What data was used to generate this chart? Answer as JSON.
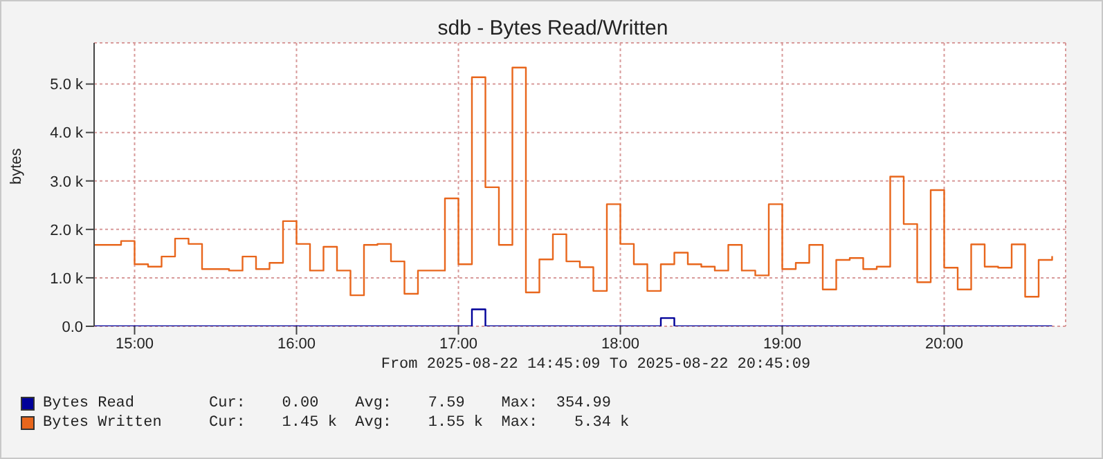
{
  "chart_data": {
    "type": "step",
    "title": "sdb - Bytes Read/Written",
    "ylabel": "bytes",
    "x": [
      "2025-08-22T14:45",
      "2025-08-22T14:50",
      "2025-08-22T14:55",
      "2025-08-22T15:00",
      "2025-08-22T15:05",
      "2025-08-22T15:10",
      "2025-08-22T15:15",
      "2025-08-22T15:20",
      "2025-08-22T15:25",
      "2025-08-22T15:30",
      "2025-08-22T15:35",
      "2025-08-22T15:40",
      "2025-08-22T15:45",
      "2025-08-22T15:50",
      "2025-08-22T15:55",
      "2025-08-22T16:00",
      "2025-08-22T16:05",
      "2025-08-22T16:10",
      "2025-08-22T16:15",
      "2025-08-22T16:20",
      "2025-08-22T16:25",
      "2025-08-22T16:30",
      "2025-08-22T16:35",
      "2025-08-22T16:40",
      "2025-08-22T16:45",
      "2025-08-22T16:50",
      "2025-08-22T16:55",
      "2025-08-22T17:00",
      "2025-08-22T17:05",
      "2025-08-22T17:10",
      "2025-08-22T17:15",
      "2025-08-22T17:20",
      "2025-08-22T17:25",
      "2025-08-22T17:30",
      "2025-08-22T17:35",
      "2025-08-22T17:40",
      "2025-08-22T17:45",
      "2025-08-22T17:50",
      "2025-08-22T17:55",
      "2025-08-22T18:00",
      "2025-08-22T18:05",
      "2025-08-22T18:10",
      "2025-08-22T18:15",
      "2025-08-22T18:20",
      "2025-08-22T18:25",
      "2025-08-22T18:30",
      "2025-08-22T18:35",
      "2025-08-22T18:40",
      "2025-08-22T18:45",
      "2025-08-22T18:50",
      "2025-08-22T18:55",
      "2025-08-22T19:00",
      "2025-08-22T19:05",
      "2025-08-22T19:10",
      "2025-08-22T19:15",
      "2025-08-22T19:20",
      "2025-08-22T19:25",
      "2025-08-22T19:30",
      "2025-08-22T19:35",
      "2025-08-22T19:40",
      "2025-08-22T19:45",
      "2025-08-22T19:50",
      "2025-08-22T19:55",
      "2025-08-22T20:00",
      "2025-08-22T20:05",
      "2025-08-22T20:10",
      "2025-08-22T20:15",
      "2025-08-22T20:20",
      "2025-08-22T20:25",
      "2025-08-22T20:30",
      "2025-08-22T20:35",
      "2025-08-22T20:40"
    ],
    "series": [
      {
        "name": "Bytes Read",
        "color": "#000099",
        "values": [
          0,
          0,
          0,
          0,
          0,
          0,
          0,
          0,
          0,
          0,
          0,
          0,
          0,
          0,
          0,
          0,
          0,
          0,
          0,
          0,
          0,
          0,
          0,
          0,
          0,
          0,
          0,
          0,
          350,
          0,
          0,
          0,
          0,
          0,
          0,
          0,
          0,
          0,
          0,
          0,
          0,
          0,
          170,
          0,
          0,
          0,
          0,
          0,
          0,
          0,
          0,
          0,
          0,
          0,
          0,
          0,
          0,
          0,
          0,
          0,
          0,
          0,
          0,
          0,
          0,
          0,
          0,
          0,
          0,
          0,
          0,
          0
        ]
      },
      {
        "name": "Bytes Written",
        "color": "#e8661c",
        "values": [
          1680,
          1680,
          1760,
          1280,
          1230,
          1440,
          1810,
          1700,
          1180,
          1180,
          1150,
          1440,
          1180,
          1310,
          2170,
          1700,
          1150,
          1640,
          1150,
          640,
          1680,
          1700,
          1340,
          670,
          1150,
          1150,
          2640,
          1280,
          5140,
          2870,
          1680,
          5340,
          700,
          1380,
          1900,
          1340,
          1220,
          730,
          2520,
          1700,
          1280,
          730,
          1280,
          1520,
          1280,
          1230,
          1150,
          1680,
          1150,
          1050,
          2520,
          1180,
          1310,
          1680,
          760,
          1370,
          1410,
          1180,
          1230,
          3090,
          2110,
          910,
          2810,
          1210,
          760,
          1690,
          1230,
          1210,
          1690,
          610,
          1370,
          1450
        ]
      }
    ],
    "xlim": [
      "2025-08-22T14:45",
      "2025-08-22T20:45"
    ],
    "xticks": [
      {
        "value": "2025-08-22T15:00",
        "label": "15:00"
      },
      {
        "value": "2025-08-22T16:00",
        "label": "16:00"
      },
      {
        "value": "2025-08-22T17:00",
        "label": "17:00"
      },
      {
        "value": "2025-08-22T18:00",
        "label": "18:00"
      },
      {
        "value": "2025-08-22T19:00",
        "label": "19:00"
      },
      {
        "value": "2025-08-22T20:00",
        "label": "20:00"
      }
    ],
    "ylim": [
      0,
      5850
    ],
    "yticks": [
      {
        "value": 0,
        "label": "0.0"
      },
      {
        "value": 1000,
        "label": "1.0 k"
      },
      {
        "value": 2000,
        "label": "2.0 k"
      },
      {
        "value": 3000,
        "label": "3.0 k"
      },
      {
        "value": 4000,
        "label": "4.0 k"
      },
      {
        "value": 5000,
        "label": "5.0 k"
      }
    ],
    "grid": true,
    "legend": "bottom",
    "marker": "none",
    "line_style": "solid",
    "annotations": [
      "From 2025-08-22 14:45:09 To 2025-08-22 20:45:09",
      "Cur:    0.00    Avg:    7.59    Max:  354.99",
      "Cur:    1.45 k  Avg:    1.55 k  Max:    5.34 k"
    ]
  }
}
